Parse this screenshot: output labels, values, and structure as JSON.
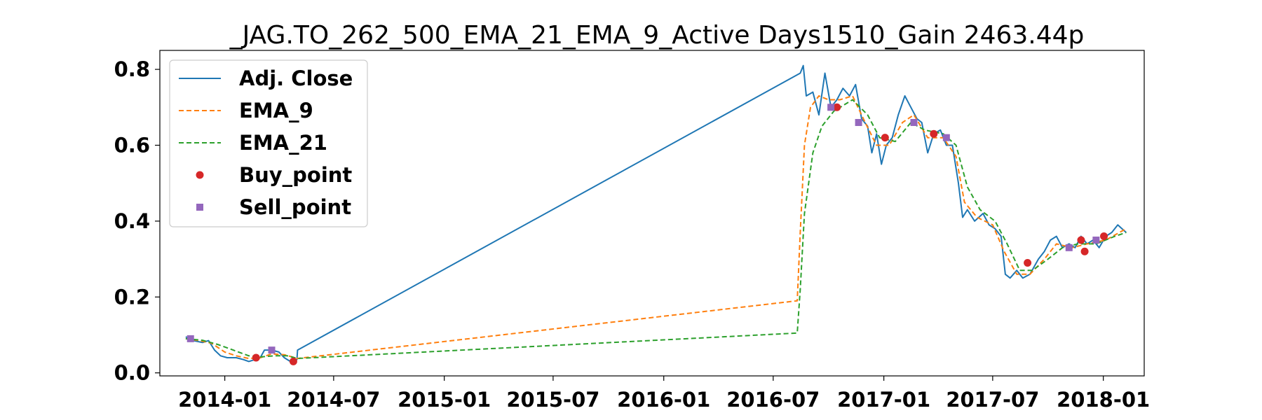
{
  "chart_data": {
    "type": "line",
    "title": "_JAG.TO_262_500_EMA_21_EMA_9_Active Days1510_Gain 2463.44p",
    "xlabel": "",
    "ylabel": "",
    "xlim": [
      "2013-09-15",
      "2018-03-10"
    ],
    "ylim": [
      -0.008,
      0.85
    ],
    "x_ticks": [
      "2014-01",
      "2014-07",
      "2015-01",
      "2015-07",
      "2016-01",
      "2016-07",
      "2017-01",
      "2017-07",
      "2018-01"
    ],
    "y_ticks": [
      0.0,
      0.2,
      0.4,
      0.6,
      0.8
    ],
    "y_tick_labels": [
      "0.0",
      "0.2",
      "0.4",
      "0.6",
      "0.8"
    ],
    "grid": false,
    "legend_position": "upper-left",
    "series": [
      {
        "name": "Adj. Close",
        "style": "solid",
        "color": "#1f77b4",
        "points": [
          [
            "2013-10-28",
            0.095
          ],
          [
            "2013-11-10",
            0.085
          ],
          [
            "2013-11-25",
            0.08
          ],
          [
            "2013-12-05",
            0.085
          ],
          [
            "2013-12-15",
            0.06
          ],
          [
            "2013-12-25",
            0.045
          ],
          [
            "2014-01-05",
            0.04
          ],
          [
            "2014-01-20",
            0.04
          ],
          [
            "2014-02-01",
            0.035
          ],
          [
            "2014-02-10",
            0.03
          ],
          [
            "2014-02-20",
            0.035
          ],
          [
            "2014-03-01",
            0.04
          ],
          [
            "2014-03-08",
            0.06
          ],
          [
            "2014-03-20",
            0.06
          ],
          [
            "2014-04-01",
            0.055
          ],
          [
            "2014-04-10",
            0.04
          ],
          [
            "2014-04-20",
            0.03
          ],
          [
            "2014-05-01",
            0.035
          ],
          [
            "2014-05-02",
            0.06
          ],
          [
            "2016-08-15",
            0.79
          ],
          [
            "2016-08-20",
            0.81
          ],
          [
            "2016-08-25",
            0.73
          ],
          [
            "2016-09-05",
            0.74
          ],
          [
            "2016-09-15",
            0.68
          ],
          [
            "2016-09-25",
            0.79
          ],
          [
            "2016-10-05",
            0.7
          ],
          [
            "2016-10-15",
            0.72
          ],
          [
            "2016-10-25",
            0.75
          ],
          [
            "2016-11-05",
            0.73
          ],
          [
            "2016-11-15",
            0.76
          ],
          [
            "2016-11-25",
            0.67
          ],
          [
            "2016-12-05",
            0.65
          ],
          [
            "2016-12-12",
            0.58
          ],
          [
            "2016-12-20",
            0.63
          ],
          [
            "2016-12-28",
            0.55
          ],
          [
            "2017-01-05",
            0.6
          ],
          [
            "2017-01-15",
            0.62
          ],
          [
            "2017-01-25",
            0.68
          ],
          [
            "2017-02-05",
            0.73
          ],
          [
            "2017-02-15",
            0.7
          ],
          [
            "2017-02-25",
            0.67
          ],
          [
            "2017-03-05",
            0.66
          ],
          [
            "2017-03-15",
            0.58
          ],
          [
            "2017-03-25",
            0.63
          ],
          [
            "2017-04-05",
            0.64
          ],
          [
            "2017-04-15",
            0.6
          ],
          [
            "2017-04-25",
            0.6
          ],
          [
            "2017-05-05",
            0.5
          ],
          [
            "2017-05-12",
            0.41
          ],
          [
            "2017-05-20",
            0.43
          ],
          [
            "2017-06-01",
            0.4
          ],
          [
            "2017-06-15",
            0.42
          ],
          [
            "2017-06-25",
            0.39
          ],
          [
            "2017-07-05",
            0.38
          ],
          [
            "2017-07-15",
            0.36
          ],
          [
            "2017-07-22",
            0.26
          ],
          [
            "2017-07-30",
            0.25
          ],
          [
            "2017-08-10",
            0.27
          ],
          [
            "2017-08-20",
            0.25
          ],
          [
            "2017-09-01",
            0.26
          ],
          [
            "2017-09-15",
            0.3
          ],
          [
            "2017-09-25",
            0.32
          ],
          [
            "2017-10-05",
            0.35
          ],
          [
            "2017-10-15",
            0.36
          ],
          [
            "2017-10-25",
            0.33
          ],
          [
            "2017-11-05",
            0.34
          ],
          [
            "2017-11-15",
            0.33
          ],
          [
            "2017-11-25",
            0.36
          ],
          [
            "2017-12-05",
            0.34
          ],
          [
            "2017-12-15",
            0.35
          ],
          [
            "2017-12-25",
            0.33
          ],
          [
            "2018-01-05",
            0.36
          ],
          [
            "2018-01-15",
            0.37
          ],
          [
            "2018-01-25",
            0.39
          ],
          [
            "2018-02-01",
            0.38
          ],
          [
            "2018-02-08",
            0.37
          ]
        ]
      },
      {
        "name": "EMA_9",
        "style": "dashed",
        "color": "#ff7f0e",
        "points": [
          [
            "2013-10-28",
            0.09
          ],
          [
            "2013-11-20",
            0.085
          ],
          [
            "2013-12-10",
            0.078
          ],
          [
            "2014-01-01",
            0.055
          ],
          [
            "2014-01-20",
            0.045
          ],
          [
            "2014-02-10",
            0.038
          ],
          [
            "2014-03-01",
            0.04
          ],
          [
            "2014-03-20",
            0.05
          ],
          [
            "2014-04-10",
            0.048
          ],
          [
            "2014-05-02",
            0.038
          ],
          [
            "2016-08-10",
            0.19
          ],
          [
            "2016-08-15",
            0.37
          ],
          [
            "2016-08-22",
            0.6
          ],
          [
            "2016-09-01",
            0.7
          ],
          [
            "2016-09-15",
            0.73
          ],
          [
            "2016-10-01",
            0.72
          ],
          [
            "2016-10-20",
            0.72
          ],
          [
            "2016-11-10",
            0.73
          ],
          [
            "2016-12-01",
            0.66
          ],
          [
            "2016-12-20",
            0.6
          ],
          [
            "2017-01-10",
            0.6
          ],
          [
            "2017-02-01",
            0.66
          ],
          [
            "2017-02-20",
            0.68
          ],
          [
            "2017-03-15",
            0.62
          ],
          [
            "2017-04-10",
            0.62
          ],
          [
            "2017-05-01",
            0.57
          ],
          [
            "2017-05-15",
            0.45
          ],
          [
            "2017-06-05",
            0.41
          ],
          [
            "2017-07-01",
            0.39
          ],
          [
            "2017-07-20",
            0.32
          ],
          [
            "2017-08-10",
            0.26
          ],
          [
            "2017-09-01",
            0.26
          ],
          [
            "2017-09-25",
            0.3
          ],
          [
            "2017-10-15",
            0.34
          ],
          [
            "2017-11-10",
            0.33
          ],
          [
            "2017-12-05",
            0.34
          ],
          [
            "2018-01-05",
            0.35
          ],
          [
            "2018-02-08",
            0.38
          ]
        ]
      },
      {
        "name": "EMA_21",
        "style": "dashed",
        "color": "#2ca02c",
        "points": [
          [
            "2013-10-28",
            0.09
          ],
          [
            "2013-11-25",
            0.086
          ],
          [
            "2013-12-20",
            0.075
          ],
          [
            "2014-01-15",
            0.06
          ],
          [
            "2014-02-10",
            0.045
          ],
          [
            "2014-03-01",
            0.042
          ],
          [
            "2014-03-25",
            0.045
          ],
          [
            "2014-04-15",
            0.045
          ],
          [
            "2014-05-02",
            0.038
          ],
          [
            "2016-08-10",
            0.105
          ],
          [
            "2016-08-15",
            0.22
          ],
          [
            "2016-08-22",
            0.42
          ],
          [
            "2016-09-05",
            0.58
          ],
          [
            "2016-09-20",
            0.65
          ],
          [
            "2016-10-10",
            0.69
          ],
          [
            "2016-11-10",
            0.72
          ],
          [
            "2016-12-05",
            0.68
          ],
          [
            "2016-12-25",
            0.62
          ],
          [
            "2017-01-20",
            0.61
          ],
          [
            "2017-02-15",
            0.66
          ],
          [
            "2017-03-10",
            0.64
          ],
          [
            "2017-04-10",
            0.63
          ],
          [
            "2017-05-01",
            0.6
          ],
          [
            "2017-05-20",
            0.49
          ],
          [
            "2017-06-10",
            0.43
          ],
          [
            "2017-07-05",
            0.4
          ],
          [
            "2017-07-25",
            0.34
          ],
          [
            "2017-08-15",
            0.27
          ],
          [
            "2017-09-05",
            0.27
          ],
          [
            "2017-10-01",
            0.3
          ],
          [
            "2017-10-25",
            0.33
          ],
          [
            "2017-11-20",
            0.34
          ],
          [
            "2017-12-20",
            0.34
          ],
          [
            "2018-01-20",
            0.36
          ],
          [
            "2018-02-08",
            0.37
          ]
        ]
      }
    ],
    "buy_points": {
      "name": "Buy_point",
      "color": "#d62728",
      "points": [
        [
          "2014-02-22",
          0.04
        ],
        [
          "2014-04-25",
          0.03
        ],
        [
          "2016-10-15",
          0.7
        ],
        [
          "2017-01-03",
          0.62
        ],
        [
          "2017-03-25",
          0.63
        ],
        [
          "2017-08-28",
          0.29
        ],
        [
          "2017-11-25",
          0.35
        ],
        [
          "2017-12-01",
          0.32
        ],
        [
          "2018-01-02",
          0.36
        ]
      ]
    },
    "sell_points": {
      "name": "Sell_point",
      "color": "#9467bd",
      "points": [
        [
          "2013-11-05",
          0.09
        ],
        [
          "2014-03-20",
          0.06
        ],
        [
          "2016-10-05",
          0.7
        ],
        [
          "2016-11-20",
          0.66
        ],
        [
          "2017-02-20",
          0.66
        ],
        [
          "2017-04-15",
          0.62
        ],
        [
          "2017-11-05",
          0.33
        ],
        [
          "2017-12-20",
          0.35
        ]
      ]
    }
  }
}
